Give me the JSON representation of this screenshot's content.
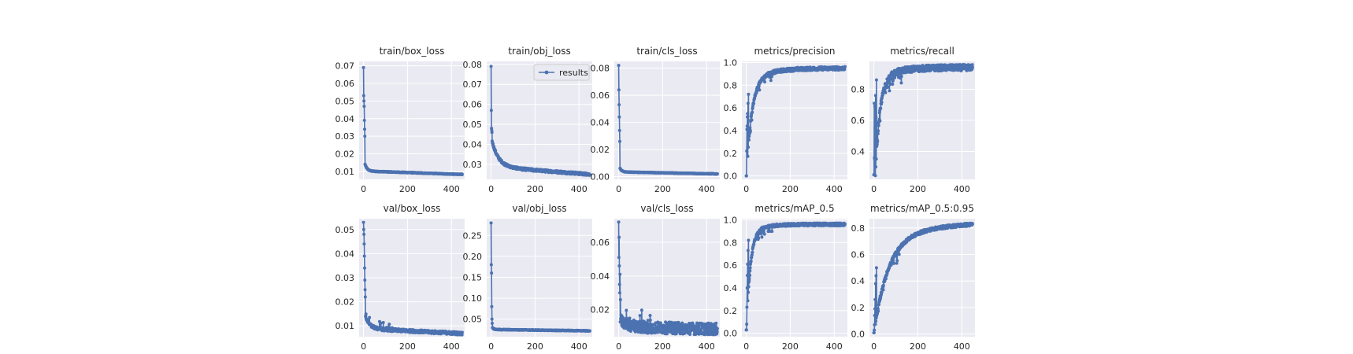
{
  "chart_data": [
    {
      "type": "line",
      "title": "train/box_loss",
      "xticks": [
        0,
        200,
        400
      ],
      "xlim": [
        -20,
        460
      ],
      "yticks": [
        0.01,
        0.02,
        0.03,
        0.04,
        0.05,
        0.06,
        0.07
      ],
      "ytick_labels": [
        "0.01",
        "0.02",
        "0.03",
        "0.04",
        "0.05",
        "0.06",
        "0.07"
      ],
      "ylim": [
        0.0055,
        0.0725
      ],
      "start": 0.069,
      "end": 0.0083,
      "shape": "decay",
      "rate": 10,
      "mid": 0.016,
      "noise": 0.0002,
      "n": 450,
      "early": [
        [
          1,
          0.053
        ],
        [
          2,
          0.05
        ],
        [
          3,
          0.047
        ],
        [
          4,
          0.039
        ],
        [
          5,
          0.034
        ],
        [
          6,
          0.03
        ]
      ],
      "series": [
        {
          "name": "results",
          "color": "#4c72b0"
        }
      ],
      "grid": true,
      "legend": null
    },
    {
      "type": "line",
      "title": "train/obj_loss",
      "xticks": [
        0,
        200,
        400
      ],
      "xlim": [
        -20,
        460
      ],
      "yticks": [
        0.03,
        0.04,
        0.05,
        0.06,
        0.07,
        0.08
      ],
      "ytick_labels": [
        "0.03",
        "0.04",
        "0.05",
        "0.06",
        "0.07",
        "0.08"
      ],
      "ylim": [
        0.0225,
        0.0815
      ],
      "start": 0.079,
      "end": 0.025,
      "shape": "decay",
      "rate": 30,
      "mid": 0.04,
      "noise": 0.0006,
      "n": 450,
      "early": [
        [
          1,
          0.057
        ],
        [
          2,
          0.048
        ],
        [
          3,
          0.047
        ],
        [
          4,
          0.046
        ]
      ],
      "series": [
        {
          "name": "results",
          "color": "#4c72b0"
        }
      ],
      "grid": true,
      "legend": "top-right",
      "legend_label": "results"
    },
    {
      "type": "line",
      "title": "train/cls_loss",
      "xticks": [
        0,
        200,
        400
      ],
      "xlim": [
        -20,
        460
      ],
      "yticks": [
        0,
        0.02,
        0.04,
        0.06,
        0.08
      ],
      "ytick_labels": [
        "0.00",
        "0.02",
        "0.04",
        "0.06",
        "0.08"
      ],
      "ylim": [
        -0.002,
        0.085
      ],
      "start": 0.082,
      "end": 0.002,
      "shape": "decay",
      "rate": 8,
      "mid": 0.008,
      "noise": 0.0002,
      "n": 450,
      "early": [
        [
          1,
          0.064
        ],
        [
          2,
          0.053
        ],
        [
          3,
          0.044
        ],
        [
          4,
          0.034
        ],
        [
          5,
          0.026
        ]
      ],
      "series": [
        {
          "name": "results",
          "color": "#4c72b0"
        }
      ],
      "grid": true,
      "legend": null
    },
    {
      "type": "line",
      "title": "metrics/precision",
      "xticks": [
        0,
        200,
        400
      ],
      "xlim": [
        -20,
        460
      ],
      "yticks": [
        0,
        0.2,
        0.4,
        0.6,
        0.8,
        1.0
      ],
      "ytick_labels": [
        "0.0",
        "0.2",
        "0.4",
        "0.6",
        "0.8",
        "1.0"
      ],
      "ylim": [
        -0.03,
        1.01
      ],
      "start": 0.0,
      "end": 0.95,
      "shape": "rise",
      "rate": 25,
      "mid": 0.85,
      "noise": 0.015,
      "n": 450,
      "early": [
        [
          1,
          0.0
        ],
        [
          2,
          0.22
        ],
        [
          3,
          0.41
        ],
        [
          4,
          0.44
        ],
        [
          5,
          0.52
        ],
        [
          6,
          0.55
        ],
        [
          8,
          0.64
        ],
        [
          10,
          0.72
        ]
      ],
      "series": [
        {
          "name": "results",
          "color": "#4c72b0"
        }
      ],
      "grid": true,
      "legend": null
    },
    {
      "type": "line",
      "title": "metrics/recall",
      "xticks": [
        0,
        200,
        400
      ],
      "xlim": [
        -20,
        460
      ],
      "yticks": [
        0.4,
        0.6,
        0.8
      ],
      "ytick_labels": [
        "0.4",
        "0.6",
        "0.8"
      ],
      "ylim": [
        0.22,
        0.98
      ],
      "start": 0.25,
      "end": 0.94,
      "shape": "rise",
      "rate": 20,
      "mid": 0.85,
      "noise": 0.02,
      "n": 450,
      "early": [
        [
          1,
          0.25
        ],
        [
          2,
          0.71
        ],
        [
          3,
          0.36
        ],
        [
          4,
          0.35
        ],
        [
          5,
          0.69
        ],
        [
          6,
          0.55
        ],
        [
          8,
          0.76
        ],
        [
          10,
          0.62
        ],
        [
          12,
          0.86
        ]
      ],
      "series": [
        {
          "name": "results",
          "color": "#4c72b0"
        }
      ],
      "grid": true,
      "legend": null
    },
    {
      "type": "line",
      "title": "val/box_loss",
      "xticks": [
        0,
        200,
        400
      ],
      "xlim": [
        -20,
        460
      ],
      "yticks": [
        0.01,
        0.02,
        0.03,
        0.04,
        0.05
      ],
      "ytick_labels": [
        "0.01",
        "0.02",
        "0.03",
        "0.04",
        "0.05"
      ],
      "ylim": [
        0.0055,
        0.0545
      ],
      "start": 0.053,
      "end": 0.0068,
      "shape": "decay",
      "rate": 20,
      "mid": 0.015,
      "noise": 0.0006,
      "n": 450,
      "early": [
        [
          1,
          0.05
        ],
        [
          2,
          0.048
        ],
        [
          3,
          0.044
        ],
        [
          4,
          0.039
        ],
        [
          5,
          0.034
        ],
        [
          6,
          0.029
        ],
        [
          7,
          0.025
        ],
        [
          8,
          0.022
        ]
      ],
      "series": [
        {
          "name": "results",
          "color": "#4c72b0"
        }
      ],
      "grid": true,
      "legend": null
    },
    {
      "type": "line",
      "title": "val/obj_loss",
      "xticks": [
        0,
        200,
        400
      ],
      "xlim": [
        -20,
        460
      ],
      "yticks": [
        0.05,
        0.1,
        0.15,
        0.2,
        0.25
      ],
      "ytick_labels": [
        "0.05",
        "0.10",
        "0.15",
        "0.20",
        "0.25"
      ],
      "ylim": [
        0.008,
        0.29
      ],
      "start": 0.28,
      "end": 0.022,
      "shape": "decay",
      "rate": 6,
      "mid": 0.035,
      "noise": 0.0008,
      "n": 450,
      "early": [
        [
          1,
          0.18
        ],
        [
          2,
          0.16
        ],
        [
          3,
          0.08
        ],
        [
          4,
          0.05
        ],
        [
          5,
          0.04
        ]
      ],
      "series": [
        {
          "name": "results",
          "color": "#4c72b0"
        }
      ],
      "grid": true,
      "legend": null
    },
    {
      "type": "line",
      "title": "val/cls_loss",
      "xticks": [
        0,
        200,
        400
      ],
      "xlim": [
        -20,
        460
      ],
      "yticks": [
        0.02,
        0.04,
        0.06
      ],
      "ytick_labels": [
        "0.02",
        "0.04",
        "0.06"
      ],
      "ylim": [
        0.004,
        0.074
      ],
      "start": 0.072,
      "end": 0.0085,
      "shape": "decay",
      "rate": 30,
      "mid": 0.014,
      "noise": 0.0035,
      "n": 450,
      "early": [
        [
          1,
          0.051
        ],
        [
          2,
          0.063
        ],
        [
          3,
          0.046
        ],
        [
          4,
          0.035
        ],
        [
          5,
          0.03
        ],
        [
          6,
          0.041
        ],
        [
          8,
          0.026
        ]
      ],
      "series": [
        {
          "name": "results",
          "color": "#4c72b0"
        }
      ],
      "grid": true,
      "legend": null
    },
    {
      "type": "line",
      "title": "metrics/mAP_0.5",
      "xticks": [
        0,
        200,
        400
      ],
      "xlim": [
        -20,
        460
      ],
      "yticks": [
        0,
        0.2,
        0.4,
        0.6,
        0.8,
        1.0
      ],
      "ytick_labels": [
        "0.0",
        "0.2",
        "0.4",
        "0.6",
        "0.8",
        "1.0"
      ],
      "ylim": [
        -0.03,
        1.01
      ],
      "start": 0.03,
      "end": 0.96,
      "shape": "rise",
      "rate": 18,
      "mid": 0.9,
      "noise": 0.012,
      "n": 450,
      "early": [
        [
          1,
          0.03
        ],
        [
          2,
          0.08
        ],
        [
          3,
          0.23
        ],
        [
          4,
          0.4
        ],
        [
          5,
          0.51
        ],
        [
          6,
          0.61
        ],
        [
          8,
          0.73
        ],
        [
          10,
          0.82
        ]
      ],
      "series": [
        {
          "name": "results",
          "color": "#4c72b0"
        }
      ],
      "grid": true,
      "legend": null
    },
    {
      "type": "line",
      "title": "metrics/mAP_0.5:0.95",
      "xticks": [
        0,
        200,
        400
      ],
      "xlim": [
        -20,
        460
      ],
      "yticks": [
        0,
        0.2,
        0.4,
        0.6,
        0.8
      ],
      "ytick_labels": [
        "0.0",
        "0.2",
        "0.4",
        "0.6",
        "0.8"
      ],
      "ylim": [
        -0.02,
        0.87
      ],
      "start": 0.01,
      "end": 0.85,
      "shape": "rise",
      "rate": 60,
      "mid": 0.7,
      "noise": 0.012,
      "n": 450,
      "early": [
        [
          1,
          0.01
        ],
        [
          2,
          0.03
        ],
        [
          3,
          0.07
        ],
        [
          4,
          0.14
        ],
        [
          5,
          0.19
        ],
        [
          6,
          0.26
        ],
        [
          8,
          0.38
        ],
        [
          10,
          0.44
        ],
        [
          12,
          0.5
        ]
      ],
      "series": [
        {
          "name": "results",
          "color": "#4c72b0"
        }
      ],
      "grid": true,
      "legend": null
    }
  ]
}
